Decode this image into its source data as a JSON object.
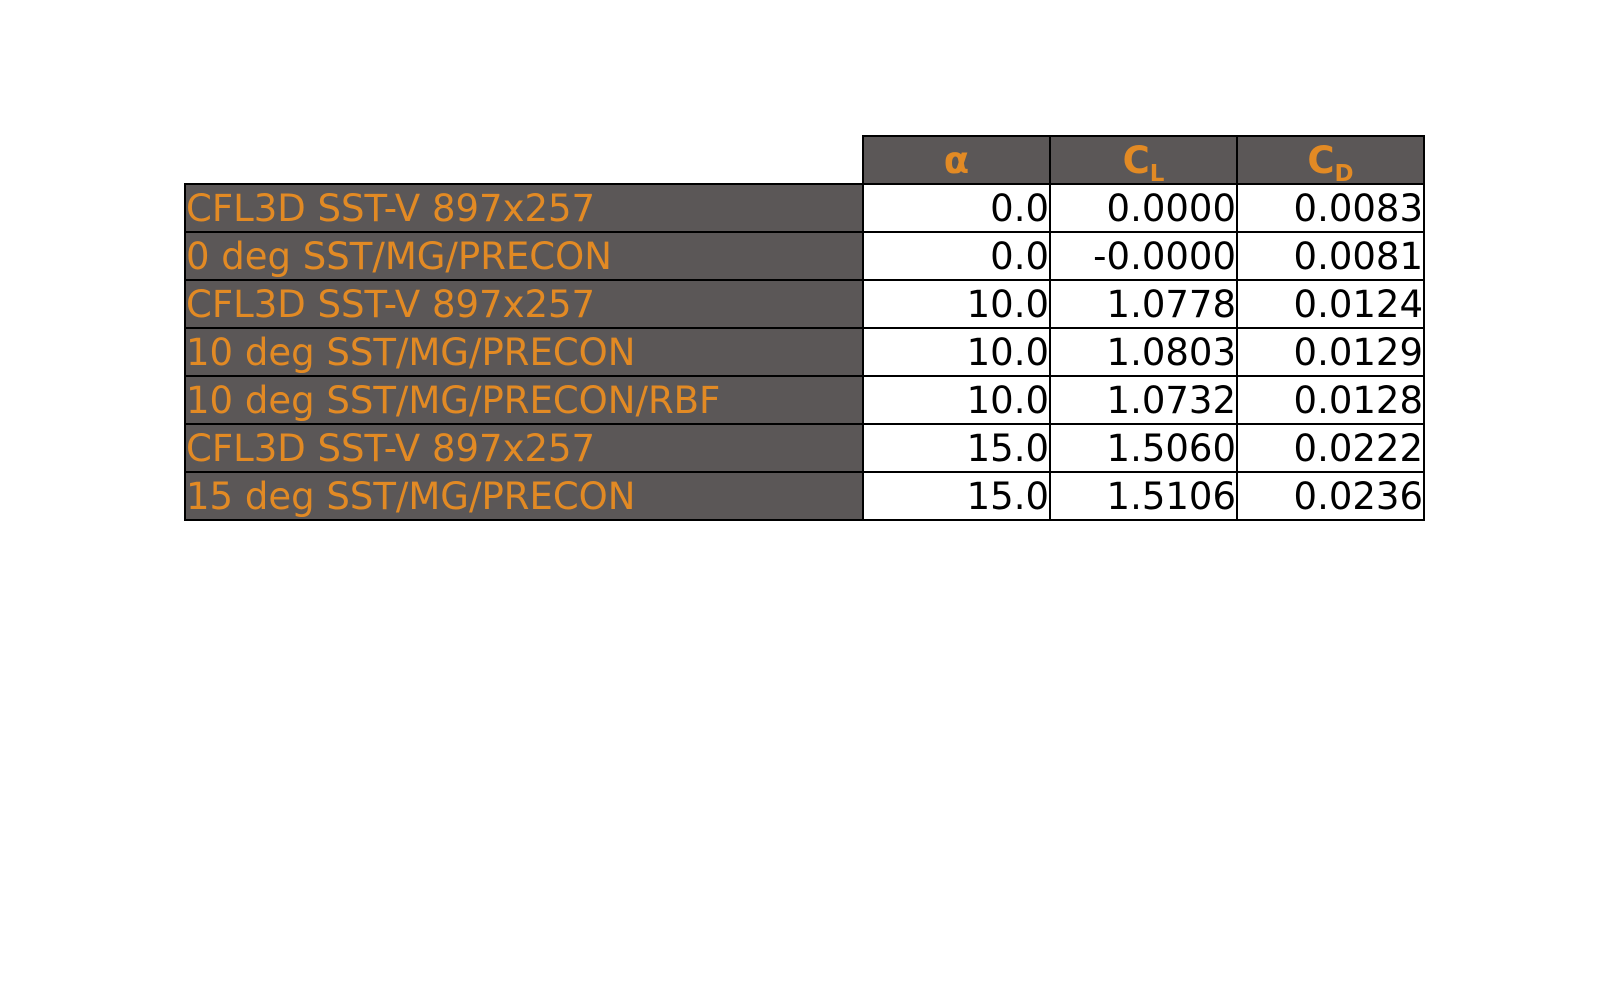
{
  "chart_data": {
    "type": "table",
    "columns": [
      {
        "base": "α",
        "sub": ""
      },
      {
        "base": "C",
        "sub": "L"
      },
      {
        "base": "C",
        "sub": "D"
      }
    ],
    "rows": [
      {
        "label": "CFL3D SST-V 897x257",
        "cells": [
          "0.0",
          "0.0000",
          "0.0083"
        ]
      },
      {
        "label": "0 deg SST/MG/PRECON",
        "cells": [
          "0.0",
          "-0.0000",
          "0.0081"
        ]
      },
      {
        "label": "CFL3D SST-V 897x257",
        "cells": [
          "10.0",
          "1.0778",
          "0.0124"
        ]
      },
      {
        "label": "10 deg SST/MG/PRECON",
        "cells": [
          "10.0",
          "1.0803",
          "0.0129"
        ]
      },
      {
        "label": "10 deg SST/MG/PRECON/RBF",
        "cells": [
          "10.0",
          "1.0732",
          "0.0128"
        ]
      },
      {
        "label": "CFL3D SST-V 897x257",
        "cells": [
          "15.0",
          "1.5060",
          "0.0222"
        ]
      },
      {
        "label": "15 deg SST/MG/PRECON",
        "cells": [
          "15.0",
          "1.5106",
          "0.0236"
        ]
      }
    ]
  },
  "colors": {
    "header_background": "#5b5757",
    "header_text": "#e28a24",
    "cell_background": "#ffffff",
    "cell_text": "#000000",
    "border": "#000000"
  }
}
